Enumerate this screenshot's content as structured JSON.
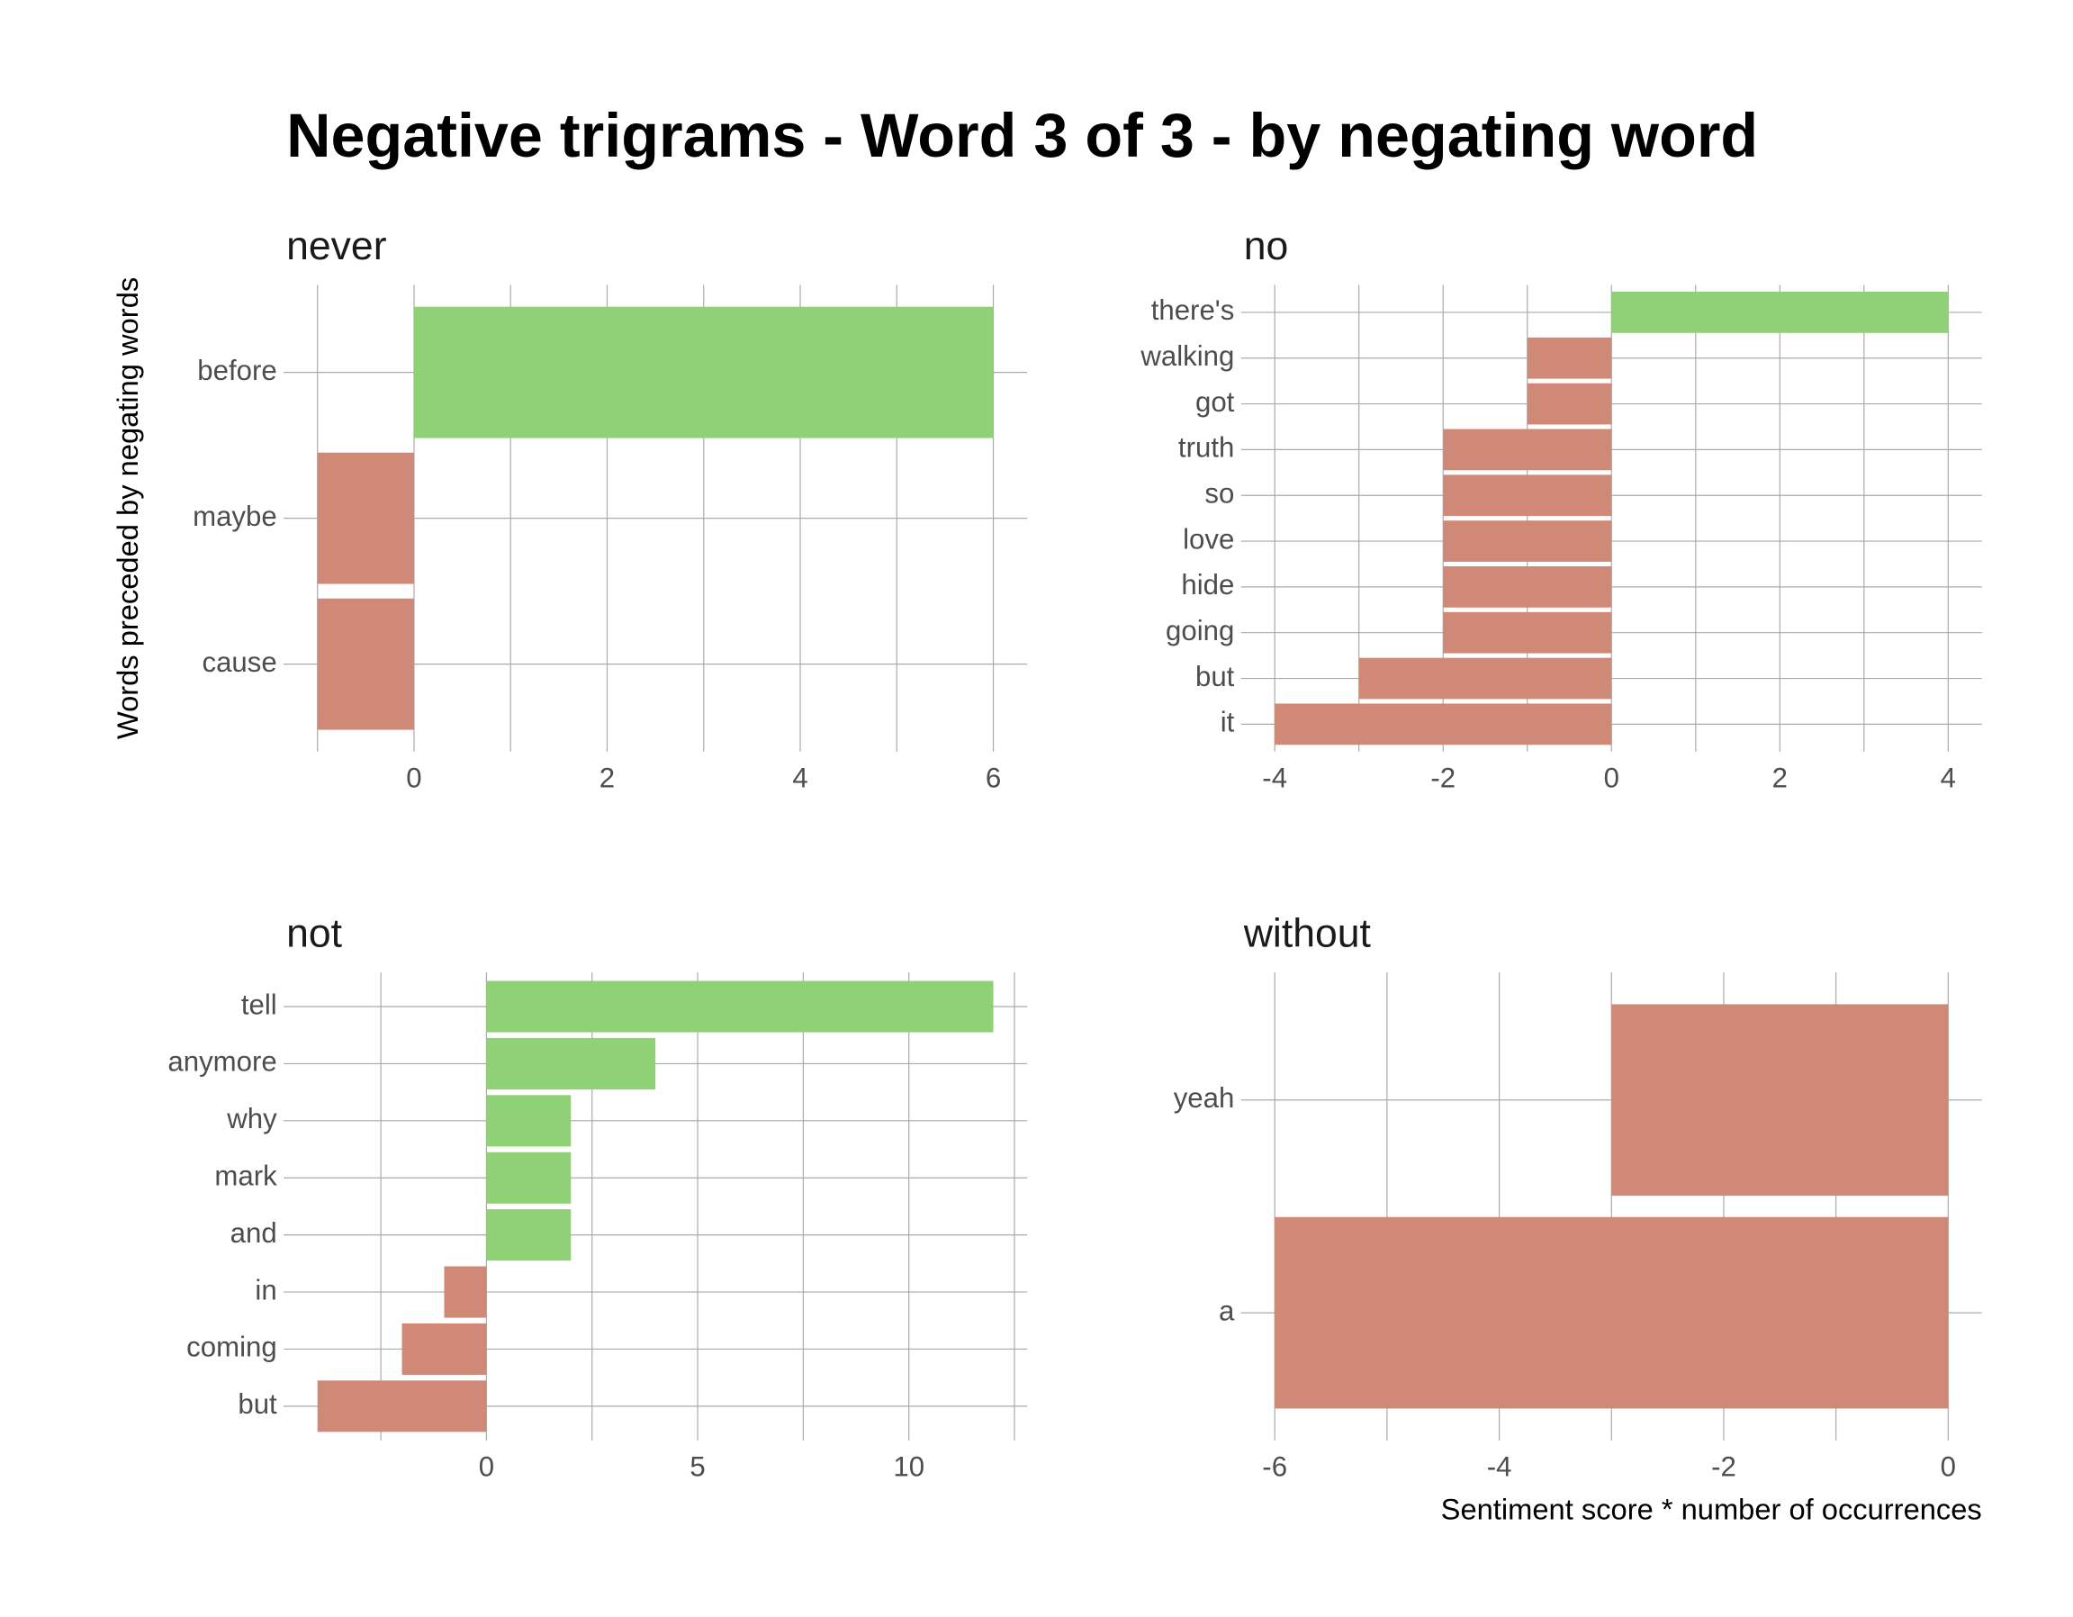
{
  "title": "Negative trigrams - Word 3 of 3 - by negating word",
  "xlabel": "Sentiment score * number of occurrences",
  "ylabel": "Words preceded by negating words",
  "positive_color": "#8fd175",
  "negative_color": "#d08877",
  "grid": true,
  "chart_data": [
    {
      "type": "bar",
      "orientation": "horizontal",
      "title": "never",
      "categories": [
        "before",
        "maybe",
        "cause"
      ],
      "values": [
        6,
        -1,
        -1
      ],
      "xlim": [
        -1.35,
        6.35
      ],
      "xticks": [
        0,
        2,
        4,
        6
      ],
      "xminor": [
        -1,
        1,
        3,
        5
      ]
    },
    {
      "type": "bar",
      "orientation": "horizontal",
      "title": "no",
      "categories": [
        "there's",
        "walking",
        "got",
        "truth",
        "so",
        "love",
        "hide",
        "going",
        "but",
        "it"
      ],
      "values": [
        4,
        -1,
        -1,
        -2,
        -2,
        -2,
        -2,
        -2,
        -3,
        -4
      ],
      "xlim": [
        -4.4,
        4.4
      ],
      "xticks": [
        -4,
        -2,
        0,
        2,
        4
      ],
      "xminor": [
        -3,
        -1,
        1,
        3
      ]
    },
    {
      "type": "bar",
      "orientation": "horizontal",
      "title": "not",
      "categories": [
        "tell",
        "anymore",
        "why",
        "mark",
        "and",
        "in",
        "coming",
        "but"
      ],
      "values": [
        12,
        4,
        2,
        2,
        2,
        -1,
        -2,
        -4
      ],
      "xlim": [
        -4.8,
        12.8
      ],
      "xticks": [
        0,
        5,
        10
      ],
      "xminor": [
        -2.5,
        2.5,
        7.5,
        12.5
      ]
    },
    {
      "type": "bar",
      "orientation": "horizontal",
      "title": "without",
      "categories": [
        "yeah",
        "a"
      ],
      "values": [
        -3,
        -6
      ],
      "xlim": [
        -6.3,
        0.3
      ],
      "xticks": [
        -6,
        -4,
        -2,
        0
      ],
      "xminor": [
        -5,
        -3,
        -1
      ]
    }
  ]
}
